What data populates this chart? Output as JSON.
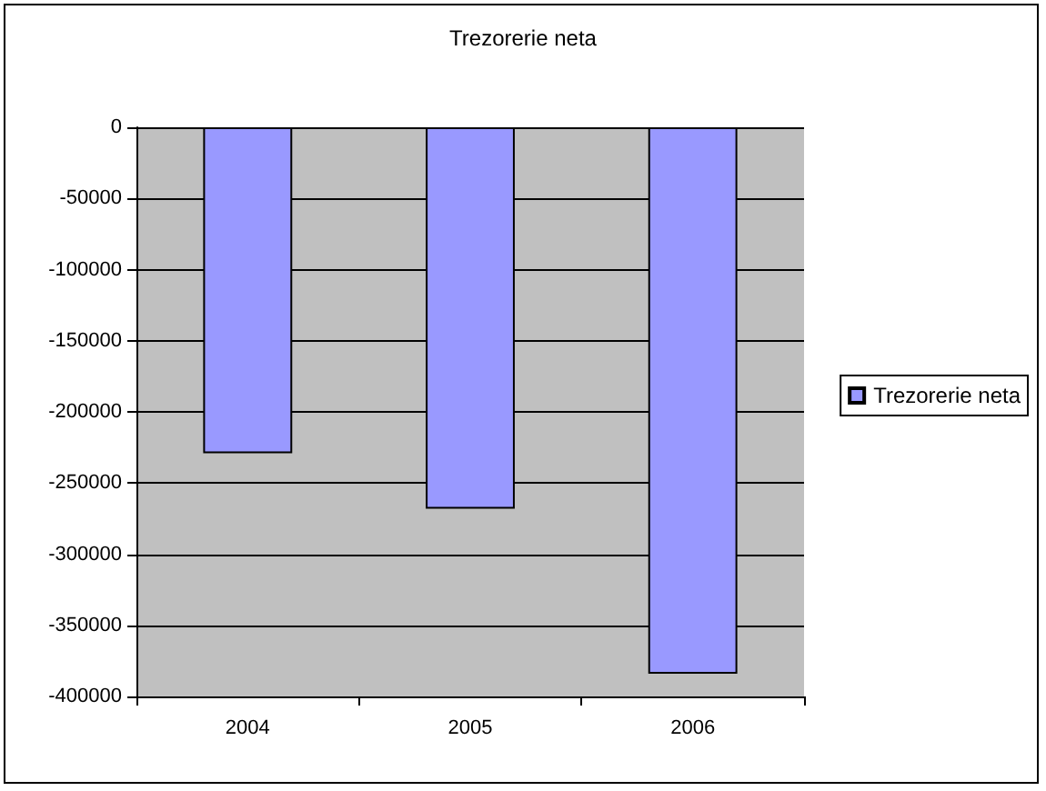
{
  "chart_data": {
    "type": "bar",
    "title": "Trezorerie neta",
    "categories": [
      "2004",
      "2005",
      "2006"
    ],
    "series": [
      {
        "name": "Trezorerie neta",
        "color": "#9999ff",
        "values": [
          -229000,
          -268000,
          -384000
        ]
      }
    ],
    "ylim": [
      -400000,
      0
    ],
    "yticks": [
      -400000,
      -350000,
      -300000,
      -250000,
      -200000,
      -150000,
      -100000,
      -50000,
      0
    ],
    "grid": "y",
    "legend": "right"
  }
}
